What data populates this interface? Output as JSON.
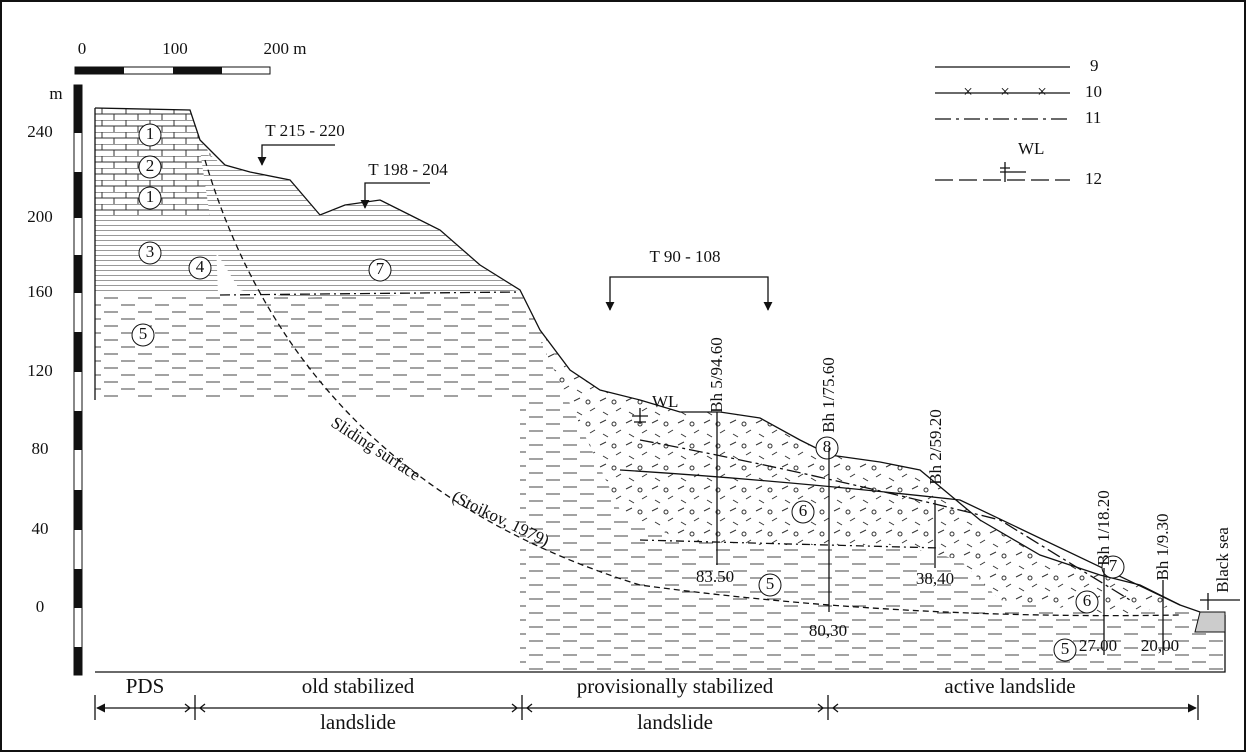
{
  "scale_bar": {
    "ticks": [
      "0",
      "100",
      "200 m"
    ]
  },
  "elevation_axis": {
    "unit": "m",
    "ticks": [
      "240",
      "200",
      "160",
      "120",
      "80",
      "40",
      "0"
    ]
  },
  "legend": [
    {
      "label": "9"
    },
    {
      "label": "10"
    },
    {
      "label": "11"
    },
    {
      "label": "12",
      "marker": "WL"
    }
  ],
  "layer_labels": [
    "1",
    "2",
    "1",
    "3",
    "4",
    "5",
    "7",
    "8",
    "6",
    "5",
    "7",
    "6",
    "5"
  ],
  "trenches": [
    "T 215 - 220",
    "T 198 - 204",
    "T 90 - 108"
  ],
  "boreholes": [
    {
      "label": "Bh 5/94.60",
      "depth": "83.50"
    },
    {
      "label": "Bh 1/75.60",
      "depth": "80,30"
    },
    {
      "label": "Bh 2/59.20",
      "depth": "38,40"
    },
    {
      "label": "Bh 1/18.20",
      "depth": "27.00"
    },
    {
      "label": "Bh 1/9.30",
      "depth": "20,00"
    }
  ],
  "annotations": {
    "sliding_surface": "Sliding surface",
    "citation": "(Stoikov, 1979)",
    "water_level": "WL",
    "sea": "Black sea"
  },
  "zones": [
    {
      "lines": [
        "PDS"
      ]
    },
    {
      "lines": [
        "old stabilized",
        "landslide"
      ]
    },
    {
      "lines": [
        "provisionally stabilized",
        "landslide"
      ]
    },
    {
      "lines": [
        "active landslide"
      ]
    }
  ]
}
